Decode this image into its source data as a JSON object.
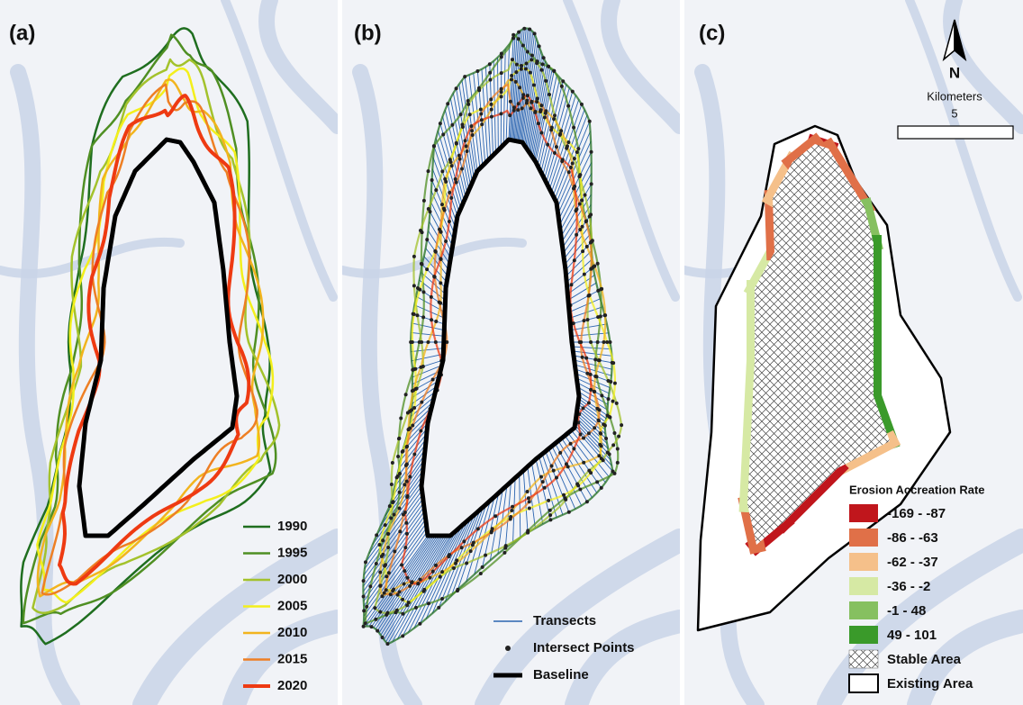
{
  "panels": [
    {
      "label": "(a)",
      "legend": [
        {
          "name": "1990",
          "color": "#1f6e1f"
        },
        {
          "name": "1995",
          "color": "#4f8f23"
        },
        {
          "name": "2000",
          "color": "#a3c22c"
        },
        {
          "name": "2005",
          "color": "#f3ef1c"
        },
        {
          "name": "2010",
          "color": "#f2b41e"
        },
        {
          "name": "2015",
          "color": "#ee7f24"
        },
        {
          "name": "2020",
          "color": "#ee3a12"
        }
      ]
    },
    {
      "label": "(b)",
      "legend": [
        {
          "name": "Transects",
          "color": "#2a64b0"
        },
        {
          "name": "Intersect Points",
          "color": "#222222"
        },
        {
          "name": "Baseline",
          "color": "#000000"
        }
      ]
    },
    {
      "label": "(c)",
      "north": "N",
      "scale_title": "Kilometers",
      "scale_value": "5",
      "legend_title": "Erosion Accreation Rate",
      "legend": [
        {
          "name": "-169 - -87",
          "color": "#c0161c"
        },
        {
          "name": "-86 - -63",
          "color": "#e07048"
        },
        {
          "name": "-62 - -37",
          "color": "#f5c08a"
        },
        {
          "name": "-36 - -2",
          "color": "#d6e9a4"
        },
        {
          "name": "-1 - 48",
          "color": "#86c060"
        },
        {
          "name": "49 - 101",
          "color": "#3a9a2a"
        }
      ],
      "stable": "Stable Area",
      "existing": "Existing Area"
    }
  ]
}
